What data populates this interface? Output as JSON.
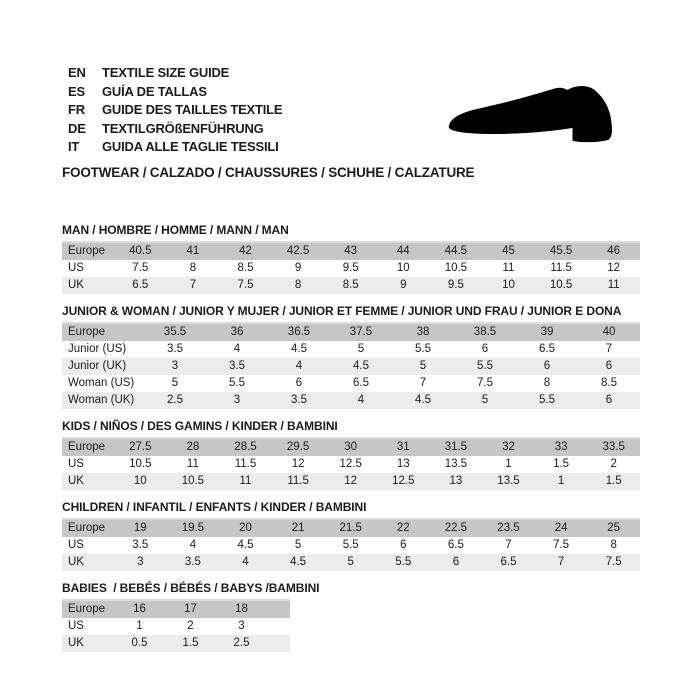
{
  "colors": {
    "text": "#1c1c1c",
    "header_row": "#c6c6c6",
    "alt_row": "#ececec",
    "shoe_icon": "#000000"
  },
  "header": {
    "languages": [
      {
        "code": "EN",
        "label": "TEXTILE SIZE GUIDE"
      },
      {
        "code": "ES",
        "label": "GUÍA DE TALLAS"
      },
      {
        "code": "FR",
        "label": "GUIDE DES TAILLES TEXTILE"
      },
      {
        "code": "DE",
        "label": "TEXTILGRÖßENFÜHRUNG"
      },
      {
        "code": "IT",
        "label": "GUIDA ALLE TAGLIE TESSILI"
      }
    ],
    "category_line": "FOOTWEAR / CALZADO / CHAUSSURES / SCHUHE / CALZATURE",
    "shoe_icon": "dress-shoe-silhouette"
  },
  "size_tables": [
    {
      "id": "man",
      "title": "MAN / HOMBRE / HOMME / MANN / MAN",
      "header_label": "Europe",
      "columns": [
        "40.5",
        "41",
        "42",
        "42.5",
        "43",
        "44",
        "44.5",
        "45",
        "45.5",
        "46"
      ],
      "rows": [
        {
          "label": "US",
          "values": [
            "7.5",
            "8",
            "8.5",
            "9",
            "9.5",
            "10",
            "10.5",
            "11",
            "11.5",
            "12"
          ]
        },
        {
          "label": "UK",
          "values": [
            "6.5",
            "7",
            "7.5",
            "8",
            "8.5",
            "9",
            "9.5",
            "10",
            "10.5",
            "11"
          ]
        }
      ],
      "layout": "full"
    },
    {
      "id": "junior-woman",
      "title": "JUNIOR & WOMAN / JUNIOR Y MUJER / JUNIOR ET FEMME / JUNIOR UND FRAU / JUNIOR E DONA",
      "header_label": "Europe",
      "columns": [
        "35.5",
        "36",
        "36.5",
        "37.5",
        "38",
        "38.5",
        "39",
        "40"
      ],
      "rows": [
        {
          "label": "Junior (US)",
          "values": [
            "3.5",
            "4",
            "4.5",
            "5",
            "5.5",
            "6",
            "6.5",
            "7"
          ]
        },
        {
          "label": "Junior (UK)",
          "values": [
            "3",
            "3.5",
            "4",
            "4.5",
            "5",
            "5.5",
            "6",
            "6"
          ]
        },
        {
          "label": "Woman (US)",
          "values": [
            "5",
            "5.5",
            "6",
            "6.5",
            "7",
            "7.5",
            "8",
            "8.5"
          ]
        },
        {
          "label": "Woman (UK)",
          "values": [
            "2.5",
            "3",
            "3.5",
            "4",
            "4.5",
            "5",
            "5.5",
            "6"
          ]
        }
      ],
      "layout": "wide-label"
    },
    {
      "id": "kids",
      "title": "KIDS / NIÑOS / DES GAMINS / KINDER / BAMBINI",
      "header_label": "Europe",
      "columns": [
        "27.5",
        "28",
        "28.5",
        "29.5",
        "30",
        "31",
        "31.5",
        "32",
        "33",
        "33.5"
      ],
      "rows": [
        {
          "label": "US",
          "values": [
            "10.5",
            "11",
            "11.5",
            "12",
            "12.5",
            "13",
            "13.5",
            "1",
            "1.5",
            "2"
          ]
        },
        {
          "label": "UK",
          "values": [
            "10",
            "10.5",
            "11",
            "11.5",
            "12",
            "12.5",
            "13",
            "13.5",
            "1",
            "1.5"
          ]
        }
      ],
      "layout": "full"
    },
    {
      "id": "children",
      "title": "CHILDREN / INFANTIL / ENFANTS / KINDER / BAMBINI",
      "header_label": "Europe",
      "columns": [
        "19",
        "19.5",
        "20",
        "21",
        "21.5",
        "22",
        "22.5",
        "23.5",
        "24",
        "25"
      ],
      "rows": [
        {
          "label": "US",
          "values": [
            "3.5",
            "4",
            "4.5",
            "5",
            "5.5",
            "6",
            "6.5",
            "7",
            "7.5",
            "8"
          ]
        },
        {
          "label": "UK",
          "values": [
            "3",
            "3.5",
            "4",
            "4.5",
            "5",
            "5.5",
            "6",
            "6.5",
            "7",
            "7.5"
          ]
        }
      ],
      "layout": "full"
    },
    {
      "id": "babies",
      "title": "BABIES  / BEBÉS / BÉBÉS / BABYS /BAMBINI",
      "header_label": "Europe",
      "columns": [
        "16",
        "17",
        "18"
      ],
      "rows": [
        {
          "label": "US",
          "values": [
            "1",
            "2",
            "3"
          ]
        },
        {
          "label": "UK",
          "values": [
            "0.5",
            "1.5",
            "2.5"
          ]
        }
      ],
      "layout": "narrow"
    }
  ]
}
